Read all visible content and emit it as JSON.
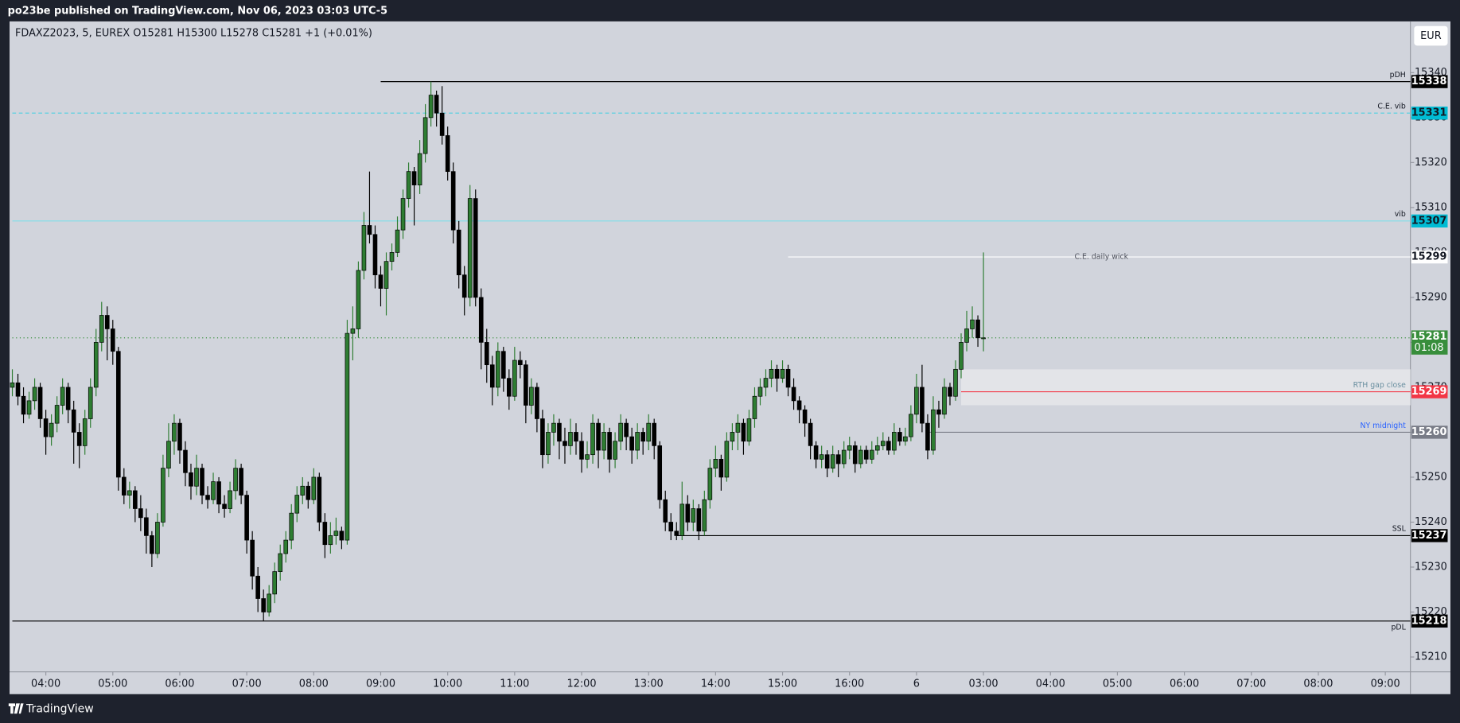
{
  "header": {
    "publisher": "po23be published on TradingView.com, Nov 06, 2023 03:03 UTC-5"
  },
  "footer": {
    "brand": "TradingView"
  },
  "chart_data": {
    "type": "candlestick",
    "legend": "FDAXZ2023, 5, EUREX  O15281  H15300  L15278  C15281  +1 (+0.01%)",
    "currency": "EUR",
    "up_color": "#2e7d32",
    "down_color": "#000000",
    "xlim": [
      -0.5,
      250.5
    ],
    "xticks": [
      {
        "value": 6,
        "label": "04:00"
      },
      {
        "value": 18,
        "label": "05:00"
      },
      {
        "value": 30,
        "label": "06:00"
      },
      {
        "value": 42,
        "label": "07:00"
      },
      {
        "value": 54,
        "label": "08:00"
      },
      {
        "value": 66,
        "label": "09:00"
      },
      {
        "value": 78,
        "label": "10:00"
      },
      {
        "value": 90,
        "label": "11:00"
      },
      {
        "value": 102,
        "label": "12:00"
      },
      {
        "value": 114,
        "label": "13:00"
      },
      {
        "value": 126,
        "label": "14:00"
      },
      {
        "value": 138,
        "label": "15:00"
      },
      {
        "value": 150,
        "label": "16:00"
      },
      {
        "value": 162,
        "label": "6"
      },
      {
        "value": 174,
        "label": "03:00"
      },
      {
        "value": 186,
        "label": "04:00"
      },
      {
        "value": 198,
        "label": "05:00"
      },
      {
        "value": 210,
        "label": "06:00"
      },
      {
        "value": 222,
        "label": "07:00"
      },
      {
        "value": 234,
        "label": "08:00"
      },
      {
        "value": 246,
        "label": "09:00"
      }
    ],
    "ylim": [
      15206.7,
      15351.4
    ],
    "yticks": [
      15210,
      15220,
      15230,
      15240,
      15250,
      15260,
      15270,
      15280,
      15290,
      15300,
      15310,
      15320,
      15330,
      15340
    ],
    "ohlc": [
      [
        15270,
        15274,
        15268,
        15271
      ],
      [
        15271,
        15273,
        15266,
        15268
      ],
      [
        15268,
        15270,
        15262,
        15264
      ],
      [
        15264,
        15269,
        15263,
        15267
      ],
      [
        15267,
        15272,
        15265,
        15270
      ],
      [
        15270,
        15271,
        15261,
        15263
      ],
      [
        15263,
        15265,
        15255,
        15259
      ],
      [
        15259,
        15264,
        15257,
        15262
      ],
      [
        15262,
        15268,
        15260,
        15266
      ],
      [
        15266,
        15272,
        15264,
        15270
      ],
      [
        15270,
        15271,
        15262,
        15265
      ],
      [
        15265,
        15267,
        15253,
        15260
      ],
      [
        15260,
        15262,
        15252,
        15257
      ],
      [
        15257,
        15265,
        15255,
        15263
      ],
      [
        15263,
        15272,
        15261,
        15270
      ],
      [
        15270,
        15283,
        15268,
        15280
      ],
      [
        15280,
        15289,
        15278,
        15286
      ],
      [
        15286,
        15288,
        15276,
        15283
      ],
      [
        15283,
        15285,
        15275,
        15278
      ],
      [
        15278,
        15279,
        15247,
        15250
      ],
      [
        15250,
        15252,
        15244,
        15246
      ],
      [
        15246,
        15249,
        15243,
        15247
      ],
      [
        15247,
        15248,
        15240,
        15243
      ],
      [
        15243,
        15246,
        15238,
        15241
      ],
      [
        15241,
        15243,
        15233,
        15237
      ],
      [
        15237,
        15238,
        15230,
        15233
      ],
      [
        15233,
        15242,
        15232,
        15240
      ],
      [
        15240,
        15255,
        15239,
        15252
      ],
      [
        15252,
        15262,
        15250,
        15258
      ],
      [
        15258,
        15264,
        15255,
        15262
      ],
      [
        15262,
        15263,
        15253,
        15256
      ],
      [
        15256,
        15258,
        15248,
        15251
      ],
      [
        15251,
        15253,
        15245,
        15248
      ],
      [
        15248,
        15255,
        15246,
        15252
      ],
      [
        15252,
        15253,
        15244,
        15246
      ],
      [
        15246,
        15248,
        15243,
        15245
      ],
      [
        15245,
        15251,
        15244,
        15249
      ],
      [
        15249,
        15250,
        15242,
        15244
      ],
      [
        15244,
        15246,
        15241,
        15243
      ],
      [
        15243,
        15249,
        15242,
        15247
      ],
      [
        15247,
        15254,
        15245,
        15252
      ],
      [
        15252,
        15253,
        15244,
        15246
      ],
      [
        15246,
        15247,
        15233,
        15236
      ],
      [
        15236,
        15238,
        15225,
        15228
      ],
      [
        15228,
        15230,
        15220,
        15223
      ],
      [
        15223,
        15225,
        15218,
        15220
      ],
      [
        15220,
        15226,
        15219,
        15224
      ],
      [
        15224,
        15231,
        15222,
        15229
      ],
      [
        15229,
        15235,
        15227,
        15233
      ],
      [
        15233,
        15238,
        15231,
        15236
      ],
      [
        15236,
        15244,
        15234,
        15242
      ],
      [
        15242,
        15248,
        15240,
        15246
      ],
      [
        15246,
        15250,
        15244,
        15248
      ],
      [
        15248,
        15249,
        15243,
        15245
      ],
      [
        15245,
        15252,
        15244,
        15250
      ],
      [
        15250,
        15251,
        15238,
        15240
      ],
      [
        15240,
        15242,
        15232,
        15235
      ],
      [
        15235,
        15240,
        15233,
        15237
      ],
      [
        15237,
        15241,
        15235,
        15238
      ],
      [
        15238,
        15239,
        15234,
        15236
      ],
      [
        15236,
        15285,
        15235,
        15282
      ],
      [
        15282,
        15288,
        15276,
        15283
      ],
      [
        15283,
        15298,
        15281,
        15296
      ],
      [
        15296,
        15309,
        15294,
        15306
      ],
      [
        15306,
        15318,
        15302,
        15304
      ],
      [
        15304,
        15306,
        15292,
        15295
      ],
      [
        15295,
        15297,
        15288,
        15292
      ],
      [
        15292,
        15300,
        15286,
        15298
      ],
      [
        15298,
        15302,
        15296,
        15300
      ],
      [
        15300,
        15308,
        15299,
        15305
      ],
      [
        15305,
        15314,
        15303,
        15312
      ],
      [
        15312,
        15320,
        15310,
        15318
      ],
      [
        15318,
        15319,
        15306,
        15315
      ],
      [
        15315,
        15325,
        15313,
        15322
      ],
      [
        15322,
        15333,
        15320,
        15330
      ],
      [
        15330,
        15338,
        15328,
        15335
      ],
      [
        15335,
        15336,
        15328,
        15331
      ],
      [
        15331,
        15337,
        15324,
        15326
      ],
      [
        15326,
        15328,
        15316,
        15318
      ],
      [
        15318,
        15320,
        15302,
        15305
      ],
      [
        15305,
        15307,
        15292,
        15295
      ],
      [
        15295,
        15297,
        15286,
        15290
      ],
      [
        15290,
        15315,
        15288,
        15312
      ],
      [
        15312,
        15314,
        15288,
        15290
      ],
      [
        15290,
        15292,
        15274,
        15280
      ],
      [
        15280,
        15283,
        15271,
        15275
      ],
      [
        15275,
        15277,
        15266,
        15270
      ],
      [
        15270,
        15280,
        15268,
        15278
      ],
      [
        15278,
        15279,
        15269,
        15272
      ],
      [
        15272,
        15274,
        15265,
        15268
      ],
      [
        15268,
        15279,
        15267,
        15276
      ],
      [
        15276,
        15278,
        15272,
        15275
      ],
      [
        15275,
        15276,
        15262,
        15266
      ],
      [
        15266,
        15272,
        15264,
        15270
      ],
      [
        15270,
        15271,
        15260,
        15263
      ],
      [
        15263,
        15265,
        15252,
        15255
      ],
      [
        15255,
        15262,
        15253,
        15260
      ],
      [
        15260,
        15264,
        15257,
        15262
      ],
      [
        15262,
        15263,
        15254,
        15258
      ],
      [
        15258,
        15261,
        15253,
        15257
      ],
      [
        15257,
        15263,
        15255,
        15260
      ],
      [
        15260,
        15262,
        15255,
        15258
      ],
      [
        15258,
        15260,
        15251,
        15254
      ],
      [
        15254,
        15258,
        15252,
        15255
      ],
      [
        15255,
        15264,
        15253,
        15262
      ],
      [
        15262,
        15263,
        15252,
        15256
      ],
      [
        15256,
        15262,
        15254,
        15260
      ],
      [
        15260,
        15261,
        15251,
        15254
      ],
      [
        15254,
        15260,
        15252,
        15258
      ],
      [
        15258,
        15264,
        15256,
        15262
      ],
      [
        15262,
        15263,
        15256,
        15259
      ],
      [
        15259,
        15261,
        15253,
        15256
      ],
      [
        15256,
        15262,
        15254,
        15260
      ],
      [
        15260,
        15261,
        15255,
        15258
      ],
      [
        15258,
        15264,
        15256,
        15262
      ],
      [
        15262,
        15263,
        15254,
        15257
      ],
      [
        15257,
        15258,
        15243,
        15245
      ],
      [
        15245,
        15247,
        15238,
        15240
      ],
      [
        15240,
        15242,
        15236,
        15238
      ],
      [
        15238,
        15240,
        15236,
        15237
      ],
      [
        15237,
        15249,
        15236,
        15244
      ],
      [
        15244,
        15246,
        15238,
        15240
      ],
      [
        15240,
        15245,
        15238,
        15243
      ],
      [
        15243,
        15244,
        15236,
        15238
      ],
      [
        15238,
        15247,
        15237,
        15245
      ],
      [
        15245,
        15254,
        15243,
        15252
      ],
      [
        15252,
        15257,
        15250,
        15254
      ],
      [
        15254,
        15255,
        15247,
        15250
      ],
      [
        15250,
        15260,
        15249,
        15258
      ],
      [
        15258,
        15262,
        15256,
        15260
      ],
      [
        15260,
        15264,
        15256,
        15262
      ],
      [
        15262,
        15263,
        15255,
        15258
      ],
      [
        15258,
        15265,
        15257,
        15263
      ],
      [
        15263,
        15270,
        15261,
        15268
      ],
      [
        15268,
        15272,
        15266,
        15270
      ],
      [
        15270,
        15274,
        15268,
        15272
      ],
      [
        15272,
        15276,
        15270,
        15274
      ],
      [
        15274,
        15275,
        15269,
        15272
      ],
      [
        15272,
        15276,
        15271,
        15274
      ],
      [
        15274,
        15275,
        15268,
        15270
      ],
      [
        15270,
        15272,
        15265,
        15267
      ],
      [
        15267,
        15268,
        15262,
        15265
      ],
      [
        15265,
        15266,
        15259,
        15262
      ],
      [
        15262,
        15263,
        15254,
        15257
      ],
      [
        15257,
        15258,
        15252,
        15254
      ],
      [
        15254,
        15257,
        15252,
        15255
      ],
      [
        15255,
        15256,
        15250,
        15252
      ],
      [
        15252,
        15257,
        15251,
        15255
      ],
      [
        15255,
        15256,
        15250,
        15253
      ],
      [
        15253,
        15258,
        15252,
        15256
      ],
      [
        15256,
        15259,
        15254,
        15257
      ],
      [
        15257,
        15258,
        15251,
        15253
      ],
      [
        15253,
        15257,
        15252,
        15256
      ],
      [
        15256,
        15257,
        15253,
        15254
      ],
      [
        15254,
        15258,
        15253,
        15256
      ],
      [
        15256,
        15259,
        15255,
        15257
      ],
      [
        15257,
        15260,
        15256,
        15258
      ],
      [
        15258,
        15259,
        15255,
        15256
      ],
      [
        15256,
        15262,
        15255,
        15260
      ],
      [
        15260,
        15261,
        15257,
        15258
      ],
      [
        15258,
        15261,
        15257,
        15259
      ],
      [
        15259,
        15266,
        15258,
        15264
      ],
      [
        15264,
        15273,
        15262,
        15270
      ],
      [
        15270,
        15275,
        15260,
        15262
      ],
      [
        15262,
        15264,
        15254,
        15256
      ],
      [
        15256,
        15268,
        15255,
        15265
      ],
      [
        15265,
        15267,
        15261,
        15264
      ],
      [
        15264,
        15272,
        15263,
        15270
      ],
      [
        15270,
        15271,
        15266,
        15268
      ],
      [
        15268,
        15276,
        15267,
        15274
      ],
      [
        15274,
        15282,
        15272,
        15280
      ],
      [
        15280,
        15287,
        15278,
        15283
      ],
      [
        15283,
        15288,
        15281,
        15285
      ],
      [
        15285,
        15286,
        15279,
        15281
      ],
      [
        15281,
        15300,
        15278,
        15281
      ]
    ],
    "zone": {
      "low": 15266,
      "high": 15274,
      "from": 170,
      "color": "#e3e4e8"
    },
    "levels": [
      {
        "label": "pDH",
        "value": 15338,
        "color": "#000000",
        "style": "solid",
        "from": 66,
        "badge": "#000000",
        "badge_text": "#ffffff",
        "label_color": "#131722"
      },
      {
        "label": "C.E. vib",
        "value": 15331,
        "color": "#4dd0e1",
        "style": "dashed",
        "from": 0,
        "badge": "#00bcd4",
        "badge_text": "#131722",
        "label_color": "#131722"
      },
      {
        "label": "vib",
        "value": 15307,
        "color": "#80deea",
        "style": "solid",
        "from": 0,
        "badge": "#00bcd4",
        "badge_text": "#131722",
        "label_color": "#131722"
      },
      {
        "label": "C.E. daily wick",
        "value": 15299,
        "color": "#ffffff",
        "style": "solid",
        "from": 139,
        "badge": "#ffffff",
        "badge_text": "#131722",
        "label_color": "#50535e",
        "label_align": "center"
      },
      {
        "value": 15281,
        "color": "#388e3c",
        "style": "dotted",
        "from": 0,
        "badge": "#388e3c",
        "badge_text": "#ffffff",
        "countdown": "01:08"
      },
      {
        "label": "RTH gap close",
        "value": 15269,
        "color": "#f23645",
        "style": "solid",
        "from": 170,
        "badge": "#f23645",
        "badge_text": "#ffffff",
        "label_color": "#6a8fa0"
      },
      {
        "label": "NY midnight",
        "value": 15260,
        "color": "#787b86",
        "style": "solid",
        "from": 164,
        "badge": "#787b86",
        "badge_text": "#ffffff",
        "label_color": "#2962ff"
      },
      {
        "label": "SSL",
        "value": 15237,
        "color": "#000000",
        "style": "solid",
        "from": 119,
        "badge": "#000000",
        "badge_text": "#ffffff",
        "label_color": "#131722"
      },
      {
        "label": "pDL",
        "value": 15218,
        "color": "#000000",
        "style": "solid",
        "from": 0,
        "badge": "#000000",
        "badge_text": "#ffffff",
        "label_color": "#131722",
        "label_pos": "below"
      }
    ]
  }
}
